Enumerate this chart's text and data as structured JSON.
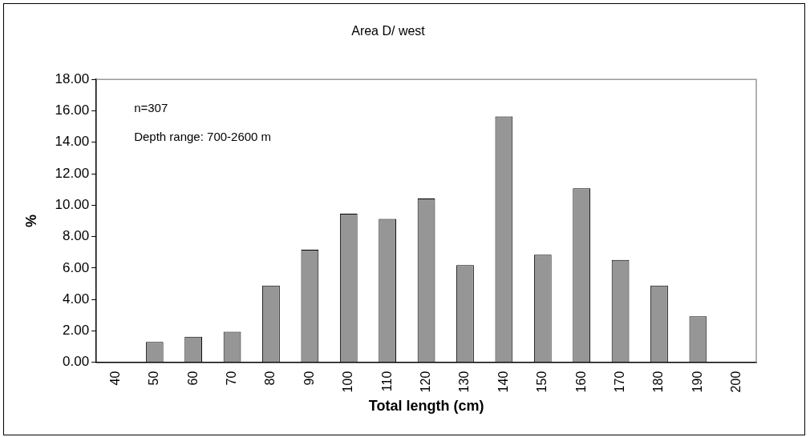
{
  "chart_data": {
    "type": "bar",
    "title": "Area D/ west",
    "xlabel": "Total length (cm)",
    "ylabel": "%",
    "categories": [
      "40",
      "50",
      "60",
      "70",
      "80",
      "90",
      "100",
      "110",
      "120",
      "130",
      "140",
      "150",
      "160",
      "170",
      "180",
      "190",
      "200"
    ],
    "values": [
      0,
      1.3,
      1.63,
      1.95,
      4.89,
      7.17,
      9.45,
      9.12,
      10.42,
      6.19,
      15.64,
      6.84,
      11.07,
      6.51,
      4.89,
      2.93,
      0
    ],
    "color": "#969696",
    "ylim": [
      0,
      18
    ],
    "yticks": [
      {
        "value": 0,
        "label": "0.00"
      },
      {
        "value": 2,
        "label": "2.00"
      },
      {
        "value": 4,
        "label": "4.00"
      },
      {
        "value": 6,
        "label": "6.00"
      },
      {
        "value": 8,
        "label": "8.00"
      },
      {
        "value": 10,
        "label": "10.00"
      },
      {
        "value": 12,
        "label": "12.00"
      },
      {
        "value": 14,
        "label": "14.00"
      },
      {
        "value": 16,
        "label": "16.00"
      },
      {
        "value": 18,
        "label": "18.00"
      }
    ],
    "annotations": [
      "n=307",
      "Depth range: 700-2600 m"
    ],
    "grid": false,
    "legend": false
  }
}
